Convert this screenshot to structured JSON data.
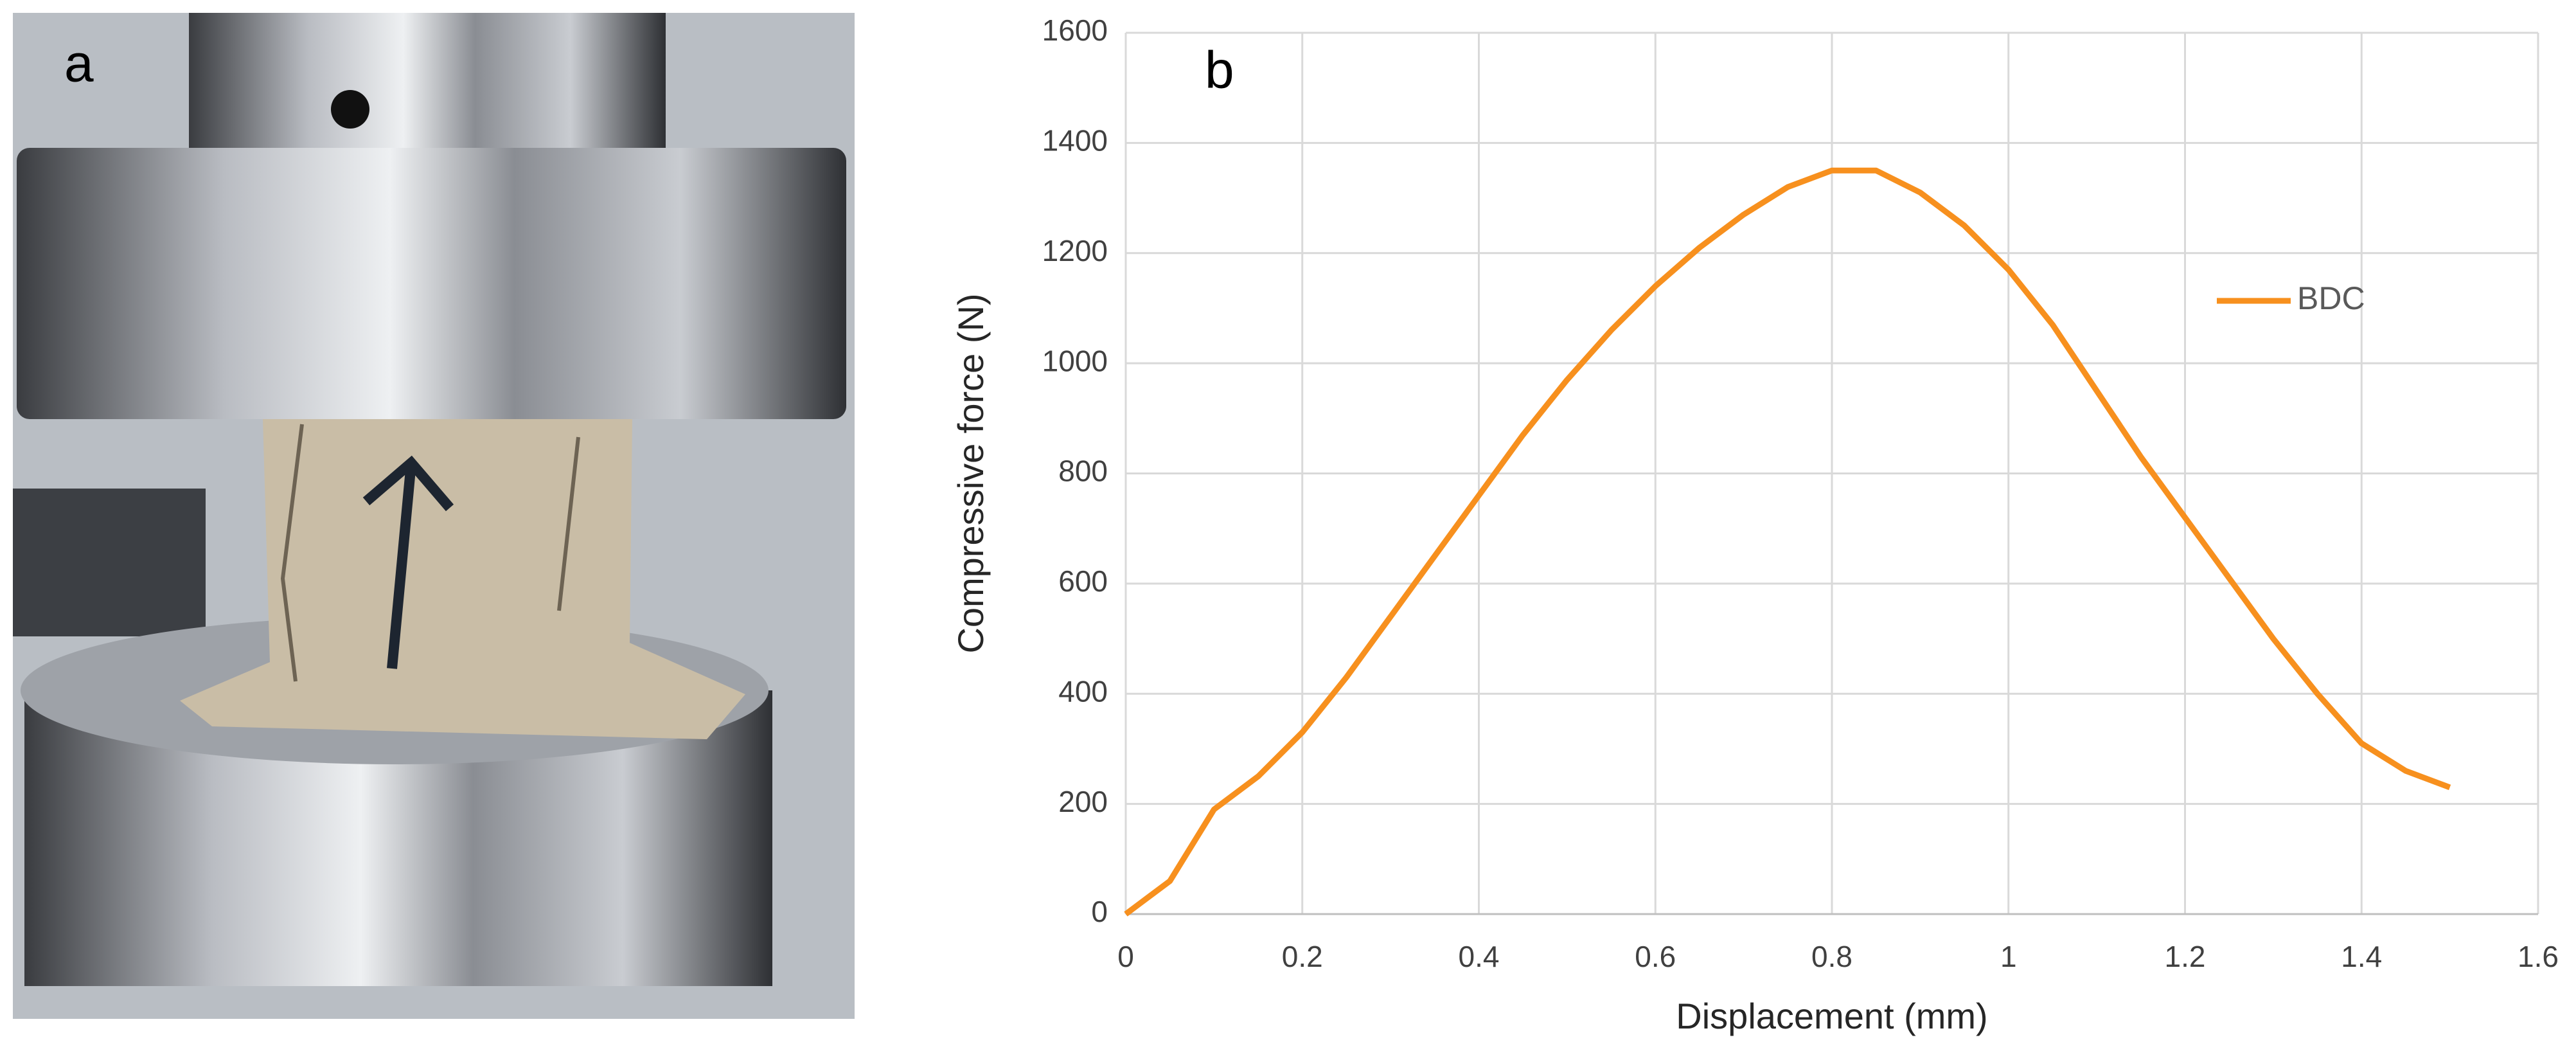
{
  "figure_labels": [
    "a",
    "b"
  ],
  "chart_data": {
    "type": "line",
    "x_label": "Displacement (mm)",
    "y_label": "Compressive force (N)",
    "x": [
      0,
      0.05,
      0.1,
      0.15,
      0.2,
      0.25,
      0.3,
      0.35,
      0.4,
      0.45,
      0.5,
      0.55,
      0.6,
      0.65,
      0.7,
      0.75,
      0.8,
      0.85,
      0.9,
      0.95,
      1.0,
      1.05,
      1.1,
      1.15,
      1.2,
      1.25,
      1.3,
      1.35,
      1.4,
      1.45,
      1.5
    ],
    "series": [
      {
        "name": "BDC",
        "color": "#f7901e",
        "values": [
          0,
          60,
          190,
          250,
          330,
          430,
          540,
          650,
          760,
          870,
          970,
          1060,
          1140,
          1210,
          1270,
          1320,
          1350,
          1350,
          1310,
          1250,
          1170,
          1070,
          950,
          830,
          720,
          610,
          500,
          400,
          310,
          260,
          230
        ]
      }
    ],
    "xlim": [
      0,
      1.6
    ],
    "xticks": [
      0,
      0.2,
      0.4,
      0.6,
      0.8,
      1,
      1.2,
      1.4,
      1.6
    ],
    "ylim": [
      0,
      1600
    ],
    "yticks": [
      0,
      200,
      400,
      600,
      800,
      1000,
      1200,
      1400,
      1600
    ],
    "grid": true,
    "legend": "right"
  }
}
